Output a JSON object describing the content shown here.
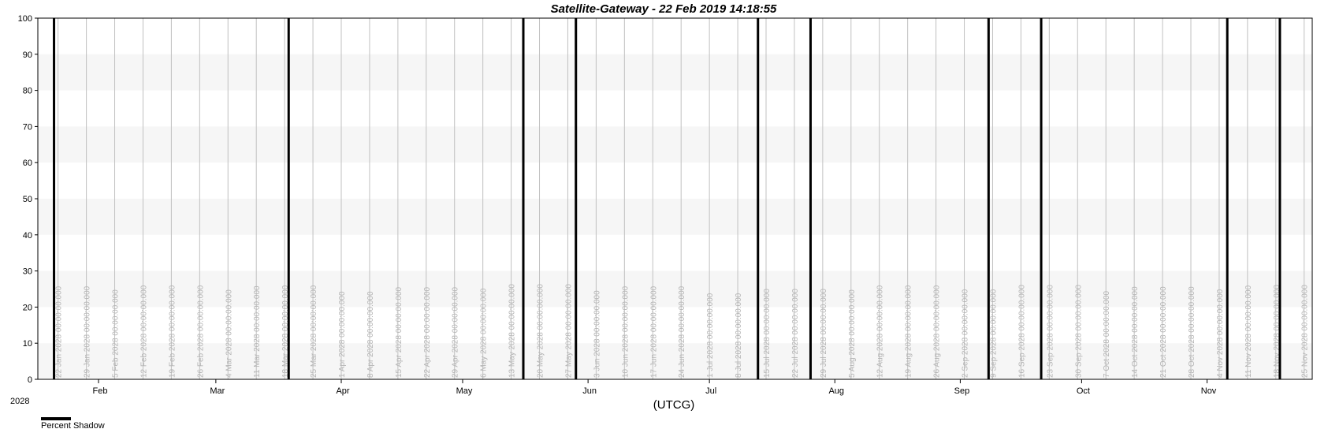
{
  "chart_data": {
    "type": "line",
    "title": "Satellite-Gateway - 22 Feb 2019 14:18:55",
    "xlabel": "(UTCG)",
    "ylabel": "",
    "ylim": [
      0,
      100
    ],
    "yticks": [
      0,
      10,
      20,
      30,
      40,
      50,
      60,
      70,
      80,
      90,
      100
    ],
    "xlim": [
      "2028-01-17",
      "2028-11-27"
    ],
    "year_label": "2028",
    "grid": true,
    "legend_position": "bottom-left",
    "month_ticks": [
      {
        "date": "2028-02-01",
        "label": "Feb"
      },
      {
        "date": "2028-03-01",
        "label": "Mar"
      },
      {
        "date": "2028-04-01",
        "label": "Apr"
      },
      {
        "date": "2028-05-01",
        "label": "May"
      },
      {
        "date": "2028-06-01",
        "label": "Jun"
      },
      {
        "date": "2028-07-01",
        "label": "Jul"
      },
      {
        "date": "2028-08-01",
        "label": "Aug"
      },
      {
        "date": "2028-09-01",
        "label": "Sep"
      },
      {
        "date": "2028-10-01",
        "label": "Oct"
      },
      {
        "date": "2028-11-01",
        "label": "Nov"
      }
    ],
    "weekly_ticks": [
      {
        "date": "2028-01-22",
        "label": "22 Jan 2028 00:00:00.000"
      },
      {
        "date": "2028-01-29",
        "label": "29 Jan 2028 00:00:00.000"
      },
      {
        "date": "2028-02-05",
        "label": "5 Feb 2028 00:00:00.000"
      },
      {
        "date": "2028-02-12",
        "label": "12 Feb 2028 00:00:00.000"
      },
      {
        "date": "2028-02-19",
        "label": "19 Feb 2028 00:00:00.000"
      },
      {
        "date": "2028-02-26",
        "label": "26 Feb 2028 00:00:00.000"
      },
      {
        "date": "2028-03-04",
        "label": "4 Mar 2028 00:00:00.000"
      },
      {
        "date": "2028-03-11",
        "label": "11 Mar 2028 00:00:00.000"
      },
      {
        "date": "2028-03-18",
        "label": "18 Mar 2028 00:00:00.000"
      },
      {
        "date": "2028-03-25",
        "label": "25 Mar 2028 00:00:00.000"
      },
      {
        "date": "2028-04-01",
        "label": "1 Apr 2028 00:00:00.000"
      },
      {
        "date": "2028-04-08",
        "label": "8 Apr 2028 00:00:00.000"
      },
      {
        "date": "2028-04-15",
        "label": "15 Apr 2028 00:00:00.000"
      },
      {
        "date": "2028-04-22",
        "label": "22 Apr 2028 00:00:00.000"
      },
      {
        "date": "2028-04-29",
        "label": "29 Apr 2028 00:00:00.000"
      },
      {
        "date": "2028-05-06",
        "label": "6 May 2028 00:00:00.000"
      },
      {
        "date": "2028-05-13",
        "label": "13 May 2028 00:00:00.000"
      },
      {
        "date": "2028-05-20",
        "label": "20 May 2028 00:00:00.000"
      },
      {
        "date": "2028-05-27",
        "label": "27 May 2028 00:00:00.000"
      },
      {
        "date": "2028-06-03",
        "label": "3 Jun 2028 00:00:00.000"
      },
      {
        "date": "2028-06-10",
        "label": "10 Jun 2028 00:00:00.000"
      },
      {
        "date": "2028-06-17",
        "label": "17 Jun 2028 00:00:00.000"
      },
      {
        "date": "2028-06-24",
        "label": "24 Jun 2028 00:00:00.000"
      },
      {
        "date": "2028-07-01",
        "label": "1 Jul 2028 00:00:00.000"
      },
      {
        "date": "2028-07-08",
        "label": "8 Jul 2028 00:00:00.000"
      },
      {
        "date": "2028-07-15",
        "label": "15 Jul 2028 00:00:00.000"
      },
      {
        "date": "2028-07-22",
        "label": "22 Jul 2028 00:00:00.000"
      },
      {
        "date": "2028-07-29",
        "label": "29 Jul 2028 00:00:00.000"
      },
      {
        "date": "2028-08-05",
        "label": "5 Aug 2028 00:00:00.000"
      },
      {
        "date": "2028-08-12",
        "label": "12 Aug 2028 00:00:00.000"
      },
      {
        "date": "2028-08-19",
        "label": "19 Aug 2028 00:00:00.000"
      },
      {
        "date": "2028-08-26",
        "label": "26 Aug 2028 00:00:00.000"
      },
      {
        "date": "2028-09-02",
        "label": "2 Sep 2028 00:00:00.000"
      },
      {
        "date": "2028-09-09",
        "label": "9 Sep 2028 00:00:00.000"
      },
      {
        "date": "2028-09-16",
        "label": "16 Sep 2028 00:00:00.000"
      },
      {
        "date": "2028-09-23",
        "label": "23 Sep 2028 00:00:00.000"
      },
      {
        "date": "2028-09-30",
        "label": "30 Sep 2028 00:00:00.000"
      },
      {
        "date": "2028-10-07",
        "label": "7 Oct 2028 00:00:00.000"
      },
      {
        "date": "2028-10-14",
        "label": "14 Oct 2028 00:00:00.000"
      },
      {
        "date": "2028-10-21",
        "label": "21 Oct 2028 00:00:00.000"
      },
      {
        "date": "2028-10-28",
        "label": "28 Oct 2028 00:00:00.000"
      },
      {
        "date": "2028-11-04",
        "label": "4 Nov 2028 00:00:00.000"
      },
      {
        "date": "2028-11-11",
        "label": "11 Nov 2028 00:00:00.000"
      },
      {
        "date": "2028-11-18",
        "label": "18 Nov 2028 00:00:00.000"
      },
      {
        "date": "2028-11-25",
        "label": "25 Nov 2028 00:00:00.000"
      }
    ],
    "series": [
      {
        "name": "Percent Shadow",
        "color": "#000000",
        "spikes": [
          {
            "date": "2028-01-21",
            "value": 100
          },
          {
            "date": "2028-03-19",
            "value": 100
          },
          {
            "date": "2028-05-16",
            "value": 100
          },
          {
            "date": "2028-05-29",
            "value": 100
          },
          {
            "date": "2028-07-13",
            "value": 100
          },
          {
            "date": "2028-07-26",
            "value": 100
          },
          {
            "date": "2028-09-08",
            "value": 100
          },
          {
            "date": "2028-09-21",
            "value": 100
          },
          {
            "date": "2028-11-06",
            "value": 100
          },
          {
            "date": "2028-11-19",
            "value": 100
          }
        ]
      }
    ]
  }
}
